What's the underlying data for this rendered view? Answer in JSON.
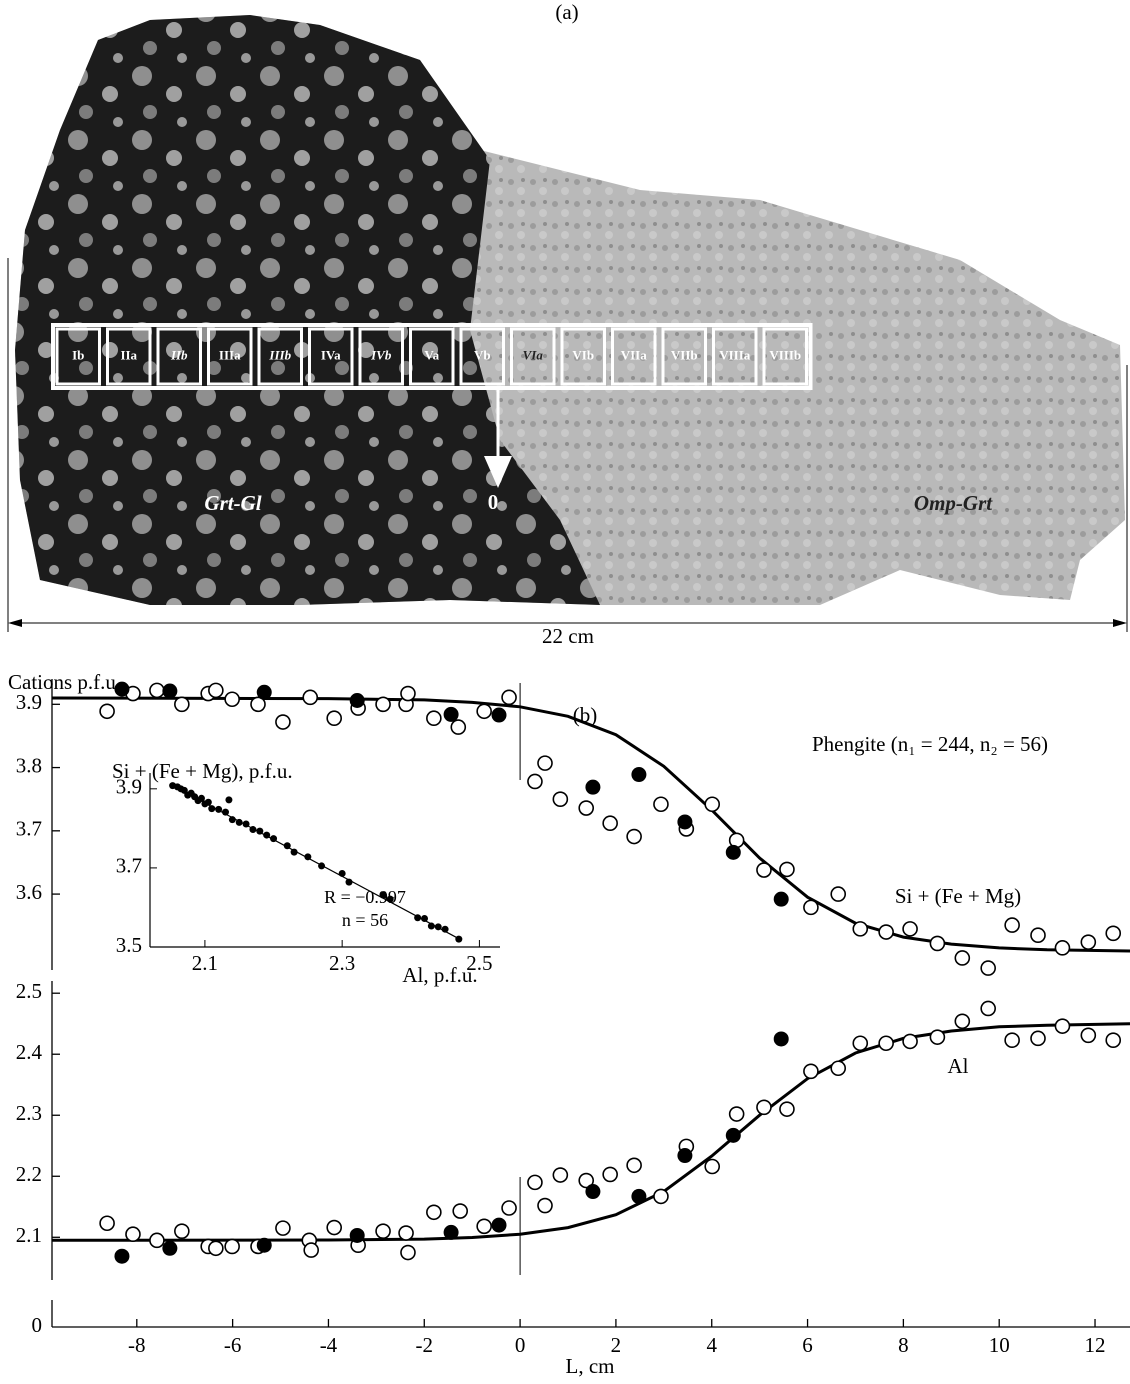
{
  "photo": {
    "label": "(a)",
    "sections": [
      "Ib",
      "IIa",
      "IIb",
      "IIIa",
      "IIIb",
      "IVa",
      "IVb",
      "Va",
      "Vb",
      "VIa",
      "VIb",
      "VIIa",
      "VIIb",
      "VIIIa",
      "VIIIb"
    ],
    "origin": "0",
    "zones": [
      "Grt-Gl",
      "Omp-Grt"
    ],
    "scale": "22 cm"
  },
  "chart_data": [
    {
      "type": "broken-axis-scatter",
      "title": "(b)",
      "y_label": "Cations p.f.u.",
      "x_label": "L, cm",
      "annotation": "Phengite (n₁ = 244, n₂ = 56)",
      "xlim": [
        -9.77,
        12.73
      ],
      "xticks": [
        -8,
        -6,
        -4,
        -2,
        0,
        2,
        4,
        6,
        8,
        10,
        12
      ],
      "y_break_tick": 0,
      "panels": [
        {
          "label": "Si + (Fe + Mg)",
          "ylim": [
            3.48,
            3.94
          ],
          "yticks": [
            3.6,
            3.7,
            3.8,
            3.9
          ],
          "open": {
            "x": [
              -8.62,
              -8.08,
              -7.58,
              -7.06,
              -6.51,
              -6.35,
              -6.01,
              -5.47,
              -4.95,
              -4.38,
              -3.88,
              -3.38,
              -2.86,
              -2.38,
              -2.34,
              -1.8,
              -1.29,
              -0.75,
              -0.23,
              0.31,
              0.52,
              0.84,
              1.38,
              1.88,
              2.38,
              2.94,
              3.47,
              4.01,
              4.52,
              5.09,
              5.57,
              6.07,
              6.64,
              7.1,
              7.64,
              8.14,
              8.71,
              9.23,
              9.77,
              10.27,
              10.81,
              11.32,
              11.86,
              12.38
            ],
            "values": [
              3.889,
              3.917,
              3.922,
              3.9,
              3.917,
              3.922,
              3.908,
              3.9,
              3.872,
              3.911,
              3.878,
              3.894,
              3.9,
              3.9,
              3.917,
              3.878,
              3.864,
              3.889,
              3.911,
              3.778,
              3.807,
              3.75,
              3.736,
              3.712,
              3.691,
              3.742,
              3.703,
              3.742,
              3.685,
              3.638,
              3.639,
              3.579,
              3.6,
              3.545,
              3.54,
              3.545,
              3.522,
              3.499,
              3.483,
              3.551,
              3.535,
              3.515,
              3.524,
              3.538
            ]
          },
          "filled": {
            "x": [
              -8.31,
              -7.31,
              -5.34,
              -3.4,
              -1.44,
              -0.44,
              1.52,
              2.48,
              3.44,
              4.45,
              5.45
            ],
            "values": [
              3.924,
              3.921,
              3.919,
              3.906,
              3.884,
              3.883,
              3.769,
              3.789,
              3.714,
              3.666,
              3.592
            ]
          },
          "fit": {
            "x": [
              -9.77,
              -4,
              -2,
              -1,
              0,
              1,
              2,
              3,
              4,
              5,
              6,
              7,
              8,
              9,
              10,
              11,
              12.73
            ],
            "values": [
              3.91,
              3.909,
              3.907,
              3.903,
              3.896,
              3.881,
              3.852,
              3.802,
              3.733,
              3.657,
              3.595,
              3.554,
              3.532,
              3.521,
              3.515,
              3.512,
              3.51
            ]
          }
        },
        {
          "label": "Al",
          "ylim": [
            2.03,
            2.52
          ],
          "yticks": [
            2.1,
            2.2,
            2.3,
            2.4,
            2.5
          ],
          "open": {
            "x": [
              -8.62,
              -8.08,
              -7.58,
              -7.06,
              -6.51,
              -6.35,
              -6.01,
              -5.47,
              -4.95,
              -4.4,
              -4.36,
              -3.88,
              -3.38,
              -2.86,
              -2.38,
              -2.34,
              -1.8,
              -1.25,
              -0.75,
              -0.23,
              0.31,
              0.52,
              0.84,
              1.38,
              1.88,
              2.38,
              2.94,
              3.47,
              4.01,
              4.52,
              5.09,
              5.57,
              6.07,
              6.64,
              7.1,
              7.64,
              8.14,
              8.71,
              9.23,
              9.77,
              10.27,
              10.81,
              11.32,
              11.86,
              12.38
            ],
            "values": [
              2.123,
              2.105,
              2.095,
              2.11,
              2.085,
              2.082,
              2.085,
              2.085,
              2.115,
              2.095,
              2.079,
              2.116,
              2.087,
              2.11,
              2.107,
              2.075,
              2.141,
              2.143,
              2.118,
              2.148,
              2.19,
              2.152,
              2.202,
              2.193,
              2.203,
              2.218,
              2.167,
              2.249,
              2.216,
              2.302,
              2.313,
              2.31,
              2.372,
              2.377,
              2.418,
              2.418,
              2.421,
              2.428,
              2.454,
              2.475,
              2.423,
              2.426,
              2.446,
              2.431,
              2.423
            ]
          },
          "filled": {
            "x": [
              -8.31,
              -7.31,
              -5.34,
              -3.4,
              -1.44,
              -0.44,
              1.52,
              2.48,
              3.44,
              4.45,
              5.45
            ],
            "values": [
              2.069,
              2.082,
              2.087,
              2.103,
              2.108,
              2.12,
              2.175,
              2.167,
              2.234,
              2.267,
              2.425
            ]
          },
          "fit": {
            "x": [
              -9.77,
              -4,
              -2,
              -1,
              0,
              1,
              2,
              3,
              4,
              5,
              6,
              7,
              8,
              9,
              10,
              11,
              12.73
            ],
            "values": [
              2.095,
              2.0955,
              2.097,
              2.0997,
              2.105,
              2.1159,
              2.137,
              2.175,
              2.233,
              2.3,
              2.36,
              2.402,
              2.426,
              2.438,
              2.445,
              2.4474,
              2.45
            ]
          }
        }
      ]
    },
    {
      "type": "scatter",
      "y_label": "Si + (Fe + Mg), p.f.u.",
      "x_label": "Al, p.f.u.",
      "annotations": [
        "R = −0.997",
        "n = 56"
      ],
      "xlim": [
        2.02,
        2.53
      ],
      "xticks": [
        2.1,
        2.3,
        2.5
      ],
      "ylim": [
        3.5,
        3.94
      ],
      "yticks": [
        3.5,
        3.7,
        3.9
      ],
      "x": [
        2.053,
        2.06,
        2.065,
        2.07,
        2.075,
        2.08,
        2.085,
        2.09,
        2.095,
        2.1,
        2.105,
        2.11,
        2.12,
        2.13,
        2.135,
        2.14,
        2.15,
        2.16,
        2.17,
        2.18,
        2.19,
        2.2,
        2.22,
        2.23,
        2.25,
        2.27,
        2.3,
        2.31,
        2.36,
        2.37,
        2.41,
        2.42,
        2.43,
        2.44,
        2.45,
        2.47
      ],
      "values": [
        3.908,
        3.905,
        3.9,
        3.896,
        3.884,
        3.889,
        3.88,
        3.87,
        3.876,
        3.862,
        3.866,
        3.85,
        3.848,
        3.841,
        3.872,
        3.822,
        3.815,
        3.811,
        3.797,
        3.793,
        3.783,
        3.774,
        3.756,
        3.74,
        3.728,
        3.705,
        3.686,
        3.664,
        3.631,
        3.621,
        3.574,
        3.572,
        3.553,
        3.551,
        3.545,
        3.52
      ],
      "fit": {
        "x": [
          2.053,
          2.47
        ],
        "values": [
          3.908,
          3.521
        ]
      }
    }
  ]
}
